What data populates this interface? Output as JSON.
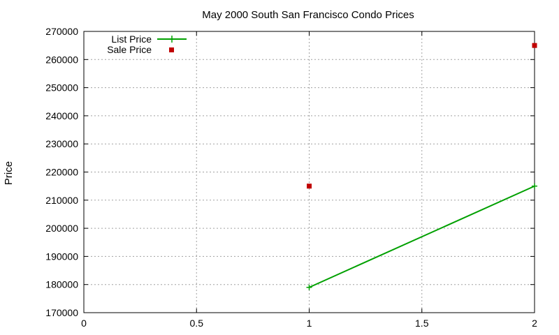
{
  "chart_data": {
    "type": "line",
    "title": "May 2000 South San Francisco Condo Prices",
    "xlabel": "",
    "ylabel": "Price",
    "xlim": [
      0,
      2
    ],
    "ylim": [
      170000,
      270000
    ],
    "x_ticks": [
      0,
      0.5,
      1,
      1.5,
      2
    ],
    "x_tick_labels": [
      "0",
      "0.5",
      "1",
      "1.5",
      "2"
    ],
    "y_ticks": [
      170000,
      180000,
      190000,
      200000,
      210000,
      220000,
      230000,
      240000,
      250000,
      260000,
      270000
    ],
    "y_tick_labels": [
      "170000",
      "180000",
      "190000",
      "200000",
      "210000",
      "220000",
      "230000",
      "240000",
      "250000",
      "260000",
      "270000"
    ],
    "grid": true,
    "legend_position": "top-left",
    "series": [
      {
        "name": "List Price",
        "style": "line-with-plus-markers",
        "color": "#00a000",
        "points": [
          {
            "x": 1,
            "y": 179000
          },
          {
            "x": 2,
            "y": 215000
          }
        ]
      },
      {
        "name": "Sale Price",
        "style": "square-markers",
        "color": "#c00000",
        "points": [
          {
            "x": 1,
            "y": 215000
          },
          {
            "x": 2,
            "y": 265000
          }
        ]
      }
    ]
  }
}
